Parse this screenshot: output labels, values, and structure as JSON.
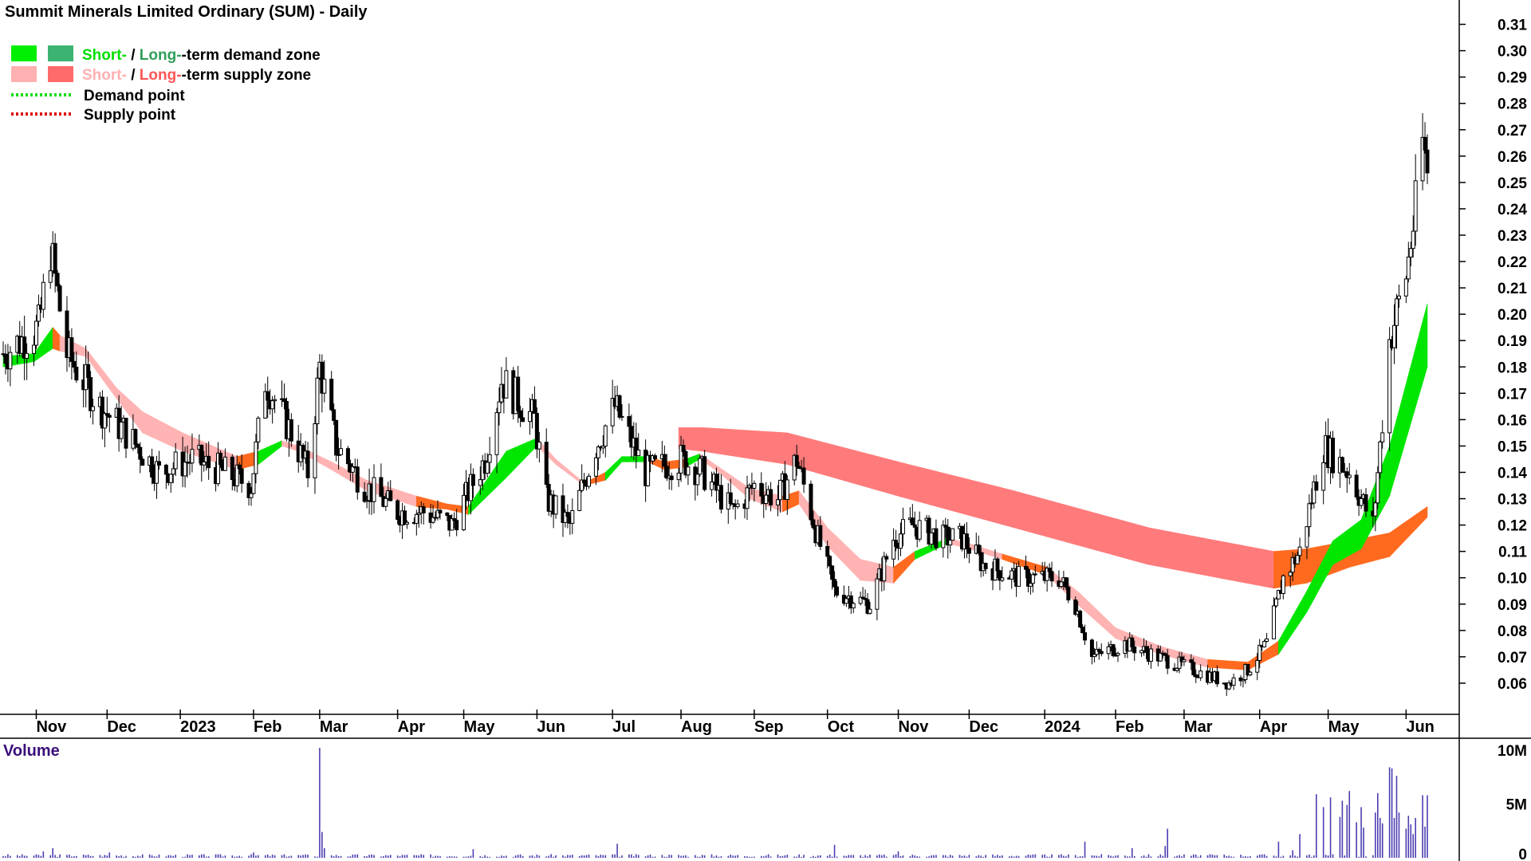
{
  "chart_data": {
    "type": "candlestick",
    "title": "Summit Minerals Limited Ordinary (SUM) - Daily",
    "legend": [
      {
        "short_label": "Short-",
        "separator": " / ",
        "long_label": "Long-",
        "rest": "-term demand zone",
        "colors": [
          "#00ee00",
          "#3cb371"
        ],
        "short_color": "#00dd00",
        "long_color": "#2e9e58"
      },
      {
        "short_label": "Short-",
        "separator": " / ",
        "long_label": "Long-",
        "rest": "-term supply zone",
        "colors": [
          "#ffb0b0",
          "#ff6a6a"
        ],
        "short_color": "#ffb0b0",
        "long_color": "#ff5555"
      },
      {
        "label": "Demand point",
        "line_color": "#00dd00",
        "style": "dotted"
      },
      {
        "label": "Supply point",
        "line_color": "#dd0000",
        "style": "dotted"
      }
    ],
    "price_axis": {
      "side": "right",
      "min": 0.05,
      "max": 0.315,
      "ticks": [
        "0.06",
        "0.07",
        "0.08",
        "0.09",
        "0.10",
        "0.11",
        "0.12",
        "0.13",
        "0.14",
        "0.15",
        "0.16",
        "0.17",
        "0.18",
        "0.19",
        "0.20",
        "0.21",
        "0.22",
        "0.23",
        "0.24",
        "0.25",
        "0.26",
        "0.27",
        "0.28",
        "0.29",
        "0.30",
        "0.31"
      ]
    },
    "x_axis": {
      "start": "2022-10-18",
      "end": "2024-06-12",
      "ticks": [
        {
          "label": "Nov",
          "date": "2022-11-01"
        },
        {
          "label": "Dec",
          "date": "2022-12-01"
        },
        {
          "label": "2023",
          "date": "2023-01-01"
        },
        {
          "label": "Feb",
          "date": "2023-02-01"
        },
        {
          "label": "Mar",
          "date": "2023-03-01"
        },
        {
          "label": "Apr",
          "date": "2023-04-03"
        },
        {
          "label": "May",
          "date": "2023-05-01"
        },
        {
          "label": "Jun",
          "date": "2023-06-01"
        },
        {
          "label": "Jul",
          "date": "2023-07-03"
        },
        {
          "label": "Aug",
          "date": "2023-08-01"
        },
        {
          "label": "Sep",
          "date": "2023-09-01"
        },
        {
          "label": "Oct",
          "date": "2023-10-02"
        },
        {
          "label": "Nov",
          "date": "2023-11-01"
        },
        {
          "label": "Dec",
          "date": "2023-12-01"
        },
        {
          "label": "2024",
          "date": "2024-01-02"
        },
        {
          "label": "Feb",
          "date": "2024-02-01"
        },
        {
          "label": "Mar",
          "date": "2024-03-01"
        },
        {
          "label": "Apr",
          "date": "2024-04-02"
        },
        {
          "label": "May",
          "date": "2024-05-01"
        },
        {
          "label": "Jun",
          "date": "2024-06-03"
        }
      ]
    },
    "price_keypoints": [
      [
        "2022-10-18",
        0.185
      ],
      [
        "2022-11-02",
        0.195
      ],
      [
        "2022-11-07",
        0.225
      ],
      [
        "2022-11-14",
        0.185
      ],
      [
        "2022-11-28",
        0.165
      ],
      [
        "2022-12-09",
        0.155
      ],
      [
        "2022-12-23",
        0.14
      ],
      [
        "2023-01-06",
        0.145
      ],
      [
        "2023-01-20",
        0.14
      ],
      [
        "2023-01-31",
        0.135
      ],
      [
        "2023-02-06",
        0.175
      ],
      [
        "2023-02-17",
        0.155
      ],
      [
        "2023-02-24",
        0.14
      ],
      [
        "2023-03-01",
        0.18
      ],
      [
        "2023-03-08",
        0.15
      ],
      [
        "2023-03-20",
        0.135
      ],
      [
        "2023-04-03",
        0.125
      ],
      [
        "2023-04-14",
        0.125
      ],
      [
        "2023-04-26",
        0.12
      ],
      [
        "2023-05-10",
        0.145
      ],
      [
        "2023-05-17",
        0.175
      ],
      [
        "2023-05-31",
        0.16
      ],
      [
        "2023-06-05",
        0.13
      ],
      [
        "2023-06-15",
        0.12
      ],
      [
        "2023-06-26",
        0.15
      ],
      [
        "2023-07-04",
        0.165
      ],
      [
        "2023-07-17",
        0.14
      ],
      [
        "2023-08-01",
        0.145
      ],
      [
        "2023-08-10",
        0.14
      ],
      [
        "2023-08-23",
        0.125
      ],
      [
        "2023-09-01",
        0.135
      ],
      [
        "2023-09-11",
        0.13
      ],
      [
        "2023-09-19",
        0.145
      ],
      [
        "2023-09-28",
        0.115
      ],
      [
        "2023-10-05",
        0.095
      ],
      [
        "2023-10-20",
        0.09
      ],
      [
        "2023-10-30",
        0.115
      ],
      [
        "2023-11-07",
        0.12
      ],
      [
        "2023-11-20",
        0.115
      ],
      [
        "2023-11-28",
        0.115
      ],
      [
        "2023-12-07",
        0.105
      ],
      [
        "2023-12-22",
        0.1
      ],
      [
        "2024-01-08",
        0.1
      ],
      [
        "2024-01-15",
        0.09
      ],
      [
        "2024-01-22",
        0.07
      ],
      [
        "2024-02-05",
        0.075
      ],
      [
        "2024-02-19",
        0.07
      ],
      [
        "2024-03-05",
        0.065
      ],
      [
        "2024-03-20",
        0.06
      ],
      [
        "2024-03-28",
        0.065
      ],
      [
        "2024-04-05",
        0.075
      ],
      [
        "2024-04-12",
        0.1
      ],
      [
        "2024-04-19",
        0.11
      ],
      [
        "2024-04-29",
        0.15
      ],
      [
        "2024-05-10",
        0.14
      ],
      [
        "2024-05-20",
        0.12
      ],
      [
        "2024-05-27",
        0.19
      ],
      [
        "2024-06-03",
        0.215
      ],
      [
        "2024-06-07",
        0.24
      ],
      [
        "2024-06-10",
        0.265
      ],
      [
        "2024-06-12",
        0.255
      ]
    ],
    "short_term_zone": [
      {
        "date": "2022-10-18",
        "upper": 0.184,
        "lower": 0.18,
        "type": "demand"
      },
      {
        "date": "2022-10-31",
        "upper": 0.185,
        "lower": 0.182,
        "type": "demand"
      },
      {
        "date": "2022-11-08",
        "upper": 0.195,
        "lower": 0.187,
        "type": "demand"
      },
      {
        "date": "2022-11-11",
        "upper": 0.192,
        "lower": 0.186,
        "type": "transition"
      },
      {
        "date": "2022-11-22",
        "upper": 0.187,
        "lower": 0.184,
        "type": "supply"
      },
      {
        "date": "2022-12-05",
        "upper": 0.172,
        "lower": 0.168,
        "type": "supply"
      },
      {
        "date": "2022-12-16",
        "upper": 0.163,
        "lower": 0.155,
        "type": "supply"
      },
      {
        "date": "2023-01-02",
        "upper": 0.155,
        "lower": 0.148,
        "type": "supply"
      },
      {
        "date": "2023-01-25",
        "upper": 0.146,
        "lower": 0.141,
        "type": "supply"
      },
      {
        "date": "2023-02-03",
        "upper": 0.148,
        "lower": 0.143,
        "type": "transition"
      },
      {
        "date": "2023-02-13",
        "upper": 0.152,
        "lower": 0.15,
        "type": "demand"
      },
      {
        "date": "2023-02-20",
        "upper": 0.15,
        "lower": 0.148,
        "type": "supply"
      },
      {
        "date": "2023-03-06",
        "upper": 0.144,
        "lower": 0.141,
        "type": "supply"
      },
      {
        "date": "2023-03-21",
        "upper": 0.137,
        "lower": 0.133,
        "type": "supply"
      },
      {
        "date": "2023-04-11",
        "upper": 0.131,
        "lower": 0.127,
        "type": "supply"
      },
      {
        "date": "2023-04-24",
        "upper": 0.128,
        "lower": 0.126,
        "type": "transition"
      },
      {
        "date": "2023-05-03",
        "upper": 0.127,
        "lower": 0.124,
        "type": "transition"
      },
      {
        "date": "2023-05-19",
        "upper": 0.148,
        "lower": 0.138,
        "type": "demand"
      },
      {
        "date": "2023-06-01",
        "upper": 0.153,
        "lower": 0.15,
        "type": "demand"
      },
      {
        "date": "2023-06-09",
        "upper": 0.145,
        "lower": 0.143,
        "type": "supply"
      },
      {
        "date": "2023-06-21",
        "upper": 0.136,
        "lower": 0.135,
        "type": "supply"
      },
      {
        "date": "2023-06-30",
        "upper": 0.14,
        "lower": 0.137,
        "type": "transition"
      },
      {
        "date": "2023-07-07",
        "upper": 0.146,
        "lower": 0.144,
        "type": "demand"
      },
      {
        "date": "2023-07-18",
        "upper": 0.146,
        "lower": 0.144,
        "type": "demand"
      },
      {
        "date": "2023-07-25",
        "upper": 0.144,
        "lower": 0.141,
        "type": "transition"
      },
      {
        "date": "2023-08-03",
        "upper": 0.145,
        "lower": 0.142,
        "type": "transition"
      },
      {
        "date": "2023-08-09",
        "upper": 0.147,
        "lower": 0.145,
        "type": "demand"
      },
      {
        "date": "2023-08-17",
        "upper": 0.142,
        "lower": 0.14,
        "type": "supply"
      },
      {
        "date": "2023-08-30",
        "upper": 0.134,
        "lower": 0.13,
        "type": "supply"
      },
      {
        "date": "2023-09-13",
        "upper": 0.131,
        "lower": 0.125,
        "type": "supply"
      },
      {
        "date": "2023-09-20",
        "upper": 0.133,
        "lower": 0.128,
        "type": "transition"
      },
      {
        "date": "2023-10-02",
        "upper": 0.119,
        "lower": 0.112,
        "type": "supply"
      },
      {
        "date": "2023-10-16",
        "upper": 0.107,
        "lower": 0.099,
        "type": "supply"
      },
      {
        "date": "2023-10-30",
        "upper": 0.104,
        "lower": 0.098,
        "type": "supply"
      },
      {
        "date": "2023-11-08",
        "upper": 0.11,
        "lower": 0.107,
        "type": "transition"
      },
      {
        "date": "2023-11-22",
        "upper": 0.115,
        "lower": 0.113,
        "type": "demand"
      },
      {
        "date": "2023-12-01",
        "upper": 0.113,
        "lower": 0.111,
        "type": "supply"
      },
      {
        "date": "2023-12-15",
        "upper": 0.109,
        "lower": 0.107,
        "type": "supply"
      },
      {
        "date": "2024-01-03",
        "upper": 0.104,
        "lower": 0.101,
        "type": "transition"
      },
      {
        "date": "2024-01-17",
        "upper": 0.094,
        "lower": 0.089,
        "type": "supply"
      },
      {
        "date": "2024-02-01",
        "upper": 0.081,
        "lower": 0.077,
        "type": "supply"
      },
      {
        "date": "2024-02-20",
        "upper": 0.074,
        "lower": 0.071,
        "type": "supply"
      },
      {
        "date": "2024-03-11",
        "upper": 0.069,
        "lower": 0.066,
        "type": "supply"
      },
      {
        "date": "2024-03-28",
        "upper": 0.068,
        "lower": 0.065,
        "type": "transition"
      },
      {
        "date": "2024-04-10",
        "upper": 0.076,
        "lower": 0.071,
        "type": "transition"
      },
      {
        "date": "2024-04-22",
        "upper": 0.095,
        "lower": 0.087,
        "type": "demand"
      },
      {
        "date": "2024-05-03",
        "upper": 0.114,
        "lower": 0.105,
        "type": "demand"
      },
      {
        "date": "2024-05-15",
        "upper": 0.122,
        "lower": 0.111,
        "type": "demand"
      },
      {
        "date": "2024-05-27",
        "upper": 0.15,
        "lower": 0.131,
        "type": "demand"
      },
      {
        "date": "2024-06-12",
        "upper": 0.204,
        "lower": 0.18,
        "type": "demand"
      }
    ],
    "long_term_zone": [
      {
        "date": "2023-07-31",
        "upper": 0.157,
        "lower": 0.149,
        "type": "transition"
      },
      {
        "date": "2023-08-10",
        "upper": 0.157,
        "lower": 0.148,
        "type": "supply"
      },
      {
        "date": "2023-09-15",
        "upper": 0.155,
        "lower": 0.143,
        "type": "supply"
      },
      {
        "date": "2023-11-01",
        "upper": 0.144,
        "lower": 0.131,
        "type": "supply"
      },
      {
        "date": "2023-12-20",
        "upper": 0.133,
        "lower": 0.119,
        "type": "supply"
      },
      {
        "date": "2024-02-15",
        "upper": 0.119,
        "lower": 0.105,
        "type": "supply"
      },
      {
        "date": "2024-04-08",
        "upper": 0.11,
        "lower": 0.096,
        "type": "supply"
      },
      {
        "date": "2024-04-22",
        "upper": 0.111,
        "lower": 0.098,
        "type": "transition"
      },
      {
        "date": "2024-05-10",
        "upper": 0.114,
        "lower": 0.104,
        "type": "transition"
      },
      {
        "date": "2024-05-27",
        "upper": 0.117,
        "lower": 0.108,
        "type": "transition"
      },
      {
        "date": "2024-06-12",
        "upper": 0.127,
        "lower": 0.123,
        "type": "transition"
      }
    ],
    "volume": {
      "title": "Volume",
      "axis_ticks": [
        "10M",
        "5M",
        "0"
      ],
      "max": 10500000,
      "color": "#4b3fb0",
      "spikes": [
        [
          "2022-11-04",
          600000
        ],
        [
          "2022-11-08",
          900000
        ],
        [
          "2022-12-02",
          500000
        ],
        [
          "2023-02-01",
          500000
        ],
        [
          "2023-03-01",
          10200000
        ],
        [
          "2023-03-02",
          2400000
        ],
        [
          "2023-03-03",
          900000
        ],
        [
          "2023-05-05",
          800000
        ],
        [
          "2023-07-05",
          1300000
        ],
        [
          "2023-10-05",
          1200000
        ],
        [
          "2023-11-01",
          600000
        ],
        [
          "2024-01-19",
          1500000
        ],
        [
          "2024-02-08",
          900000
        ],
        [
          "2024-02-22",
          1100000
        ],
        [
          "2024-02-23",
          2700000
        ],
        [
          "2024-04-10",
          1500000
        ],
        [
          "2024-04-16",
          700000
        ],
        [
          "2024-04-19",
          2200000
        ],
        [
          "2024-04-26",
          5900000
        ],
        [
          "2024-04-29",
          4700000
        ],
        [
          "2024-05-02",
          5600000
        ],
        [
          "2024-05-06",
          3800000
        ],
        [
          "2024-05-07",
          5300000
        ],
        [
          "2024-05-09",
          4900000
        ],
        [
          "2024-05-10",
          6200000
        ],
        [
          "2024-05-13",
          3300000
        ],
        [
          "2024-05-15",
          4700000
        ],
        [
          "2024-05-16",
          2800000
        ],
        [
          "2024-05-21",
          4200000
        ],
        [
          "2024-05-22",
          6000000
        ],
        [
          "2024-05-23",
          3700000
        ],
        [
          "2024-05-24",
          3200000
        ],
        [
          "2024-05-27",
          8400000
        ],
        [
          "2024-05-28",
          8300000
        ],
        [
          "2024-05-29",
          3700000
        ],
        [
          "2024-05-30",
          7600000
        ],
        [
          "2024-05-31",
          4200000
        ],
        [
          "2024-06-03",
          2700000
        ],
        [
          "2024-06-04",
          3900000
        ],
        [
          "2024-06-05",
          3100000
        ],
        [
          "2024-06-06",
          2200000
        ],
        [
          "2024-06-07",
          3700000
        ],
        [
          "2024-06-10",
          5800000
        ],
        [
          "2024-06-11",
          2900000
        ],
        [
          "2024-06-12",
          5800000
        ]
      ]
    }
  }
}
